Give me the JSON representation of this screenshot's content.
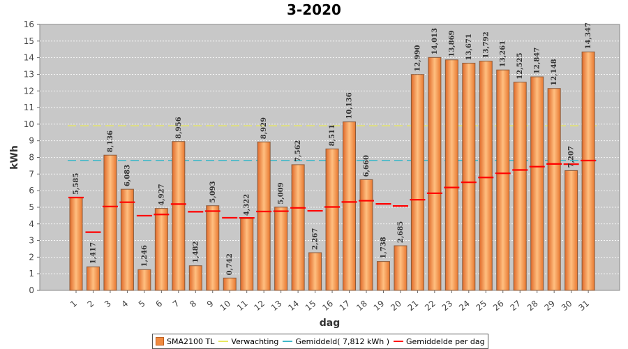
{
  "chart_data": {
    "type": "bar",
    "title": "3-2020",
    "xlabel": "dag",
    "ylabel": "kWh",
    "ylim": [
      0,
      16
    ],
    "yticks": [
      0,
      1,
      2,
      3,
      4,
      5,
      6,
      7,
      8,
      9,
      10,
      11,
      12,
      13,
      14,
      15,
      16
    ],
    "categories": [
      "1",
      "2",
      "3",
      "4",
      "5",
      "6",
      "7",
      "8",
      "9",
      "10",
      "11",
      "12",
      "13",
      "14",
      "15",
      "16",
      "17",
      "18",
      "19",
      "20",
      "21",
      "22",
      "23",
      "24",
      "25",
      "26",
      "27",
      "28",
      "29",
      "30",
      "31"
    ],
    "series": [
      {
        "name": "SMA2100 TL",
        "kind": "bar",
        "color": "#f08a40",
        "values": [
          5.585,
          1.417,
          8.136,
          6.083,
          1.246,
          4.927,
          8.956,
          1.482,
          5.093,
          0.742,
          4.322,
          8.929,
          5.009,
          7.562,
          2.267,
          8.511,
          10.136,
          6.66,
          1.738,
          2.685,
          12.99,
          14.013,
          13.869,
          13.671,
          13.792,
          13.261,
          12.525,
          12.847,
          12.148,
          7.207,
          14.347
        ]
      },
      {
        "name": "Verwachting",
        "kind": "hline",
        "color": "#e8e860",
        "value": 9.9
      },
      {
        "name": "Gemiddeld( 7,812 kWh )",
        "kind": "hline",
        "color": "#40b8c8",
        "value": 7.812
      },
      {
        "name": "Gemiddelde per dag",
        "kind": "marker",
        "color": "#ff0000",
        "values": [
          5.585,
          3.501,
          5.046,
          5.305,
          4.493,
          4.566,
          5.193,
          4.73,
          4.77,
          4.367,
          4.363,
          4.744,
          4.764,
          4.964,
          4.784,
          5.017,
          5.318,
          5.393,
          5.201,
          5.075,
          5.452,
          5.841,
          6.19,
          6.501,
          6.793,
          7.042,
          7.245,
          7.445,
          7.607,
          7.593,
          7.812
        ]
      }
    ],
    "bar_labels": [
      "5,585",
      "1,417",
      "8,136",
      "6,083",
      "1,246",
      "4,927",
      "8,956",
      "1,482",
      "5,093",
      "0,742",
      "4,322",
      "8,929",
      "5,009",
      "7,562",
      "2,267",
      "8,511",
      "10,136",
      "6,660",
      "1,738",
      "2,685",
      "12,990",
      "14,013",
      "13,869",
      "13,671",
      "13,792",
      "13,261",
      "12,525",
      "12,847",
      "12,148",
      "7,207",
      "14,347"
    ],
    "legend_position": "bottom",
    "grid": true
  },
  "legend": {
    "items": [
      {
        "label": "SMA2100 TL"
      },
      {
        "label": "Verwachting"
      },
      {
        "label": "Gemiddeld( 7,812 kWh )"
      },
      {
        "label": "Gemiddelde per dag"
      }
    ]
  }
}
